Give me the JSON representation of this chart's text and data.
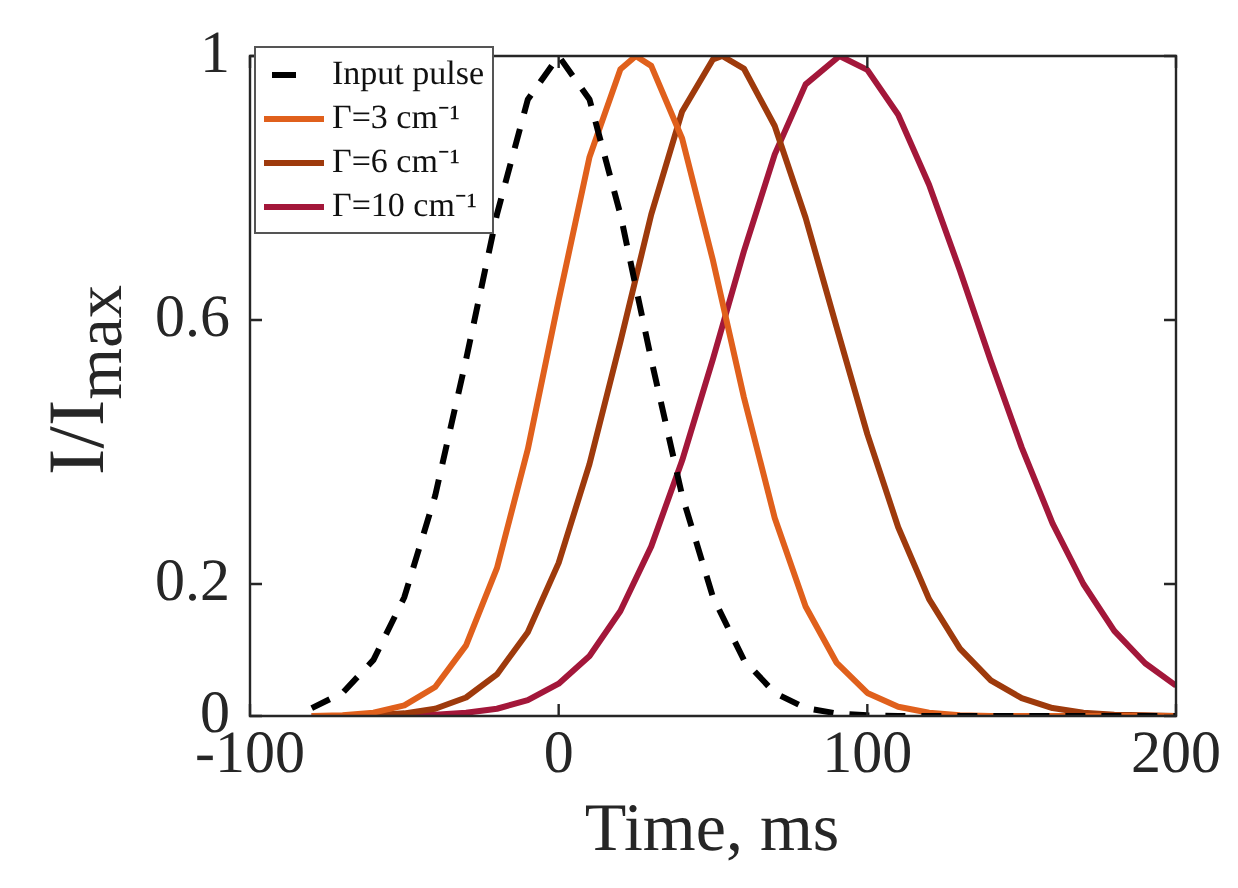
{
  "chart_data": {
    "type": "line",
    "xlabel": "Time, ms",
    "ylabel": "I/I$_{max}$",
    "xlim": [
      -100,
      200
    ],
    "ylim": [
      0,
      1
    ],
    "xticks": [
      -100,
      0,
      100,
      200
    ],
    "yticks": [
      0,
      0.2,
      0.6,
      1
    ],
    "legend": "top left",
    "series": [
      {
        "name": "Input pulse",
        "color": "#000000",
        "line_style": "dashed",
        "x": [
          -80,
          -70,
          -60,
          -50,
          -40,
          -30,
          -20,
          -10,
          0,
          10,
          20,
          30,
          40,
          50,
          60,
          70,
          80,
          90,
          100,
          110,
          120,
          140,
          160,
          180,
          200
        ],
        "values": [
          0.012,
          0.035,
          0.085,
          0.18,
          0.334,
          0.54,
          0.76,
          0.934,
          1,
          0.934,
          0.76,
          0.54,
          0.334,
          0.18,
          0.085,
          0.035,
          0.012,
          0.004,
          0.001,
          0,
          0,
          0,
          0,
          0,
          0
        ]
      },
      {
        "name": "Γ=3 cm⁻¹",
        "color": "#e0601c",
        "x": [
          -80,
          -70,
          -60,
          -50,
          -40,
          -30,
          -20,
          -10,
          0,
          10,
          20,
          25,
          30,
          40,
          50,
          60,
          70,
          80,
          90,
          100,
          110,
          120,
          130,
          140,
          160,
          180,
          200
        ],
        "values": [
          0,
          0.001,
          0.005,
          0.016,
          0.044,
          0.107,
          0.224,
          0.404,
          0.63,
          0.847,
          0.98,
          1,
          0.985,
          0.875,
          0.69,
          0.483,
          0.3,
          0.166,
          0.081,
          0.035,
          0.014,
          0.005,
          0.001,
          0,
          0,
          0,
          0
        ]
      },
      {
        "name": "Γ=6 cm⁻¹",
        "color": "#9e3a0c",
        "x": [
          -80,
          -70,
          -60,
          -50,
          -40,
          -30,
          -20,
          -10,
          0,
          10,
          20,
          30,
          40,
          50,
          53,
          60,
          70,
          80,
          90,
          100,
          110,
          120,
          130,
          140,
          150,
          160,
          170,
          180,
          190,
          200
        ],
        "values": [
          0,
          0,
          0.001,
          0.004,
          0.011,
          0.028,
          0.063,
          0.127,
          0.232,
          0.382,
          0.567,
          0.76,
          0.916,
          0.995,
          1,
          0.981,
          0.894,
          0.755,
          0.59,
          0.427,
          0.286,
          0.177,
          0.102,
          0.054,
          0.027,
          0.012,
          0.005,
          0.002,
          0.001,
          0
        ]
      },
      {
        "name": "Γ=10 cm⁻¹",
        "color": "#a3173a",
        "x": [
          -80,
          -60,
          -50,
          -40,
          -30,
          -20,
          -10,
          0,
          10,
          20,
          30,
          40,
          50,
          60,
          70,
          80,
          91,
          100,
          110,
          120,
          130,
          140,
          150,
          160,
          170,
          180,
          190,
          200
        ],
        "values": [
          0,
          0,
          0.001,
          0.002,
          0.005,
          0.011,
          0.024,
          0.049,
          0.091,
          0.159,
          0.257,
          0.387,
          0.541,
          0.704,
          0.851,
          0.957,
          1,
          0.979,
          0.911,
          0.805,
          0.675,
          0.538,
          0.407,
          0.292,
          0.2,
          0.129,
          0.08,
          0.046
        ]
      }
    ]
  }
}
